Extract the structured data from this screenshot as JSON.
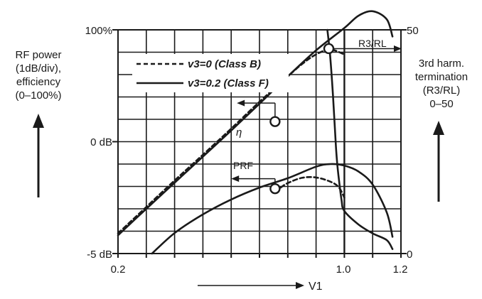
{
  "chart_data": {
    "type": "line",
    "title": "",
    "left_axis": {
      "caption_lines": [
        "RF power",
        "(1dB/div),",
        "efficiency",
        "(0–100%)"
      ],
      "tick_labels": [
        "100%",
        "0 dB",
        "-5 dB"
      ]
    },
    "right_axis": {
      "caption_lines": [
        "3rd harm.",
        "termination",
        "(R3/RL)",
        "0–50"
      ],
      "tick_labels": [
        "50",
        "0"
      ],
      "ylim": [
        0,
        50
      ]
    },
    "x_axis": {
      "label": "V1",
      "xlim": [
        0.2,
        1.2
      ],
      "tick_labels": [
        "0.2",
        "1.0",
        "1.2"
      ]
    },
    "legend": {
      "placement": "top-left",
      "entries": [
        {
          "label": "v3=0 (Class B)",
          "style": "dashed"
        },
        {
          "label": "v3=0.2 (Class F)",
          "style": "solid"
        }
      ]
    },
    "annotations": [
      {
        "text": "η",
        "target": "efficiency"
      },
      {
        "text": "PRF",
        "target": "rf-power"
      },
      {
        "text": "R3/RL",
        "target": "third-harmonic-termination"
      }
    ],
    "series": [
      {
        "name": "v3=0 (Class B)",
        "quantity": "efficiency",
        "axis": "left",
        "style": "dashed",
        "x": [
          0.2,
          0.3,
          0.4,
          0.5,
          0.6,
          0.7,
          0.8,
          0.85,
          0.9,
          0.95,
          1.0
        ],
        "y": [
          0.54,
          1.25,
          1.96,
          2.65,
          3.35,
          4.07,
          4.75,
          5.08,
          5.34,
          5.47,
          5.34
        ]
      },
      {
        "name": "v3=0.2 (Class F)",
        "quantity": "efficiency",
        "axis": "left",
        "style": "solid",
        "x": [
          0.2,
          0.3,
          0.4,
          0.5,
          0.6,
          0.7,
          0.8,
          0.9,
          1.0,
          1.05,
          1.1,
          1.15,
          1.17
        ],
        "y": [
          0.49,
          1.2,
          1.9,
          2.6,
          3.3,
          4.02,
          4.75,
          5.45,
          6.05,
          6.38,
          6.5,
          6.28,
          5.82
        ]
      },
      {
        "name": "v3=0 (Class B)",
        "quantity": "rf-power",
        "axis": "left",
        "style": "dashed",
        "x": [
          0.775,
          0.8,
          0.85,
          0.9,
          0.95,
          0.98,
          1.0
        ],
        "y": [
          1.77,
          1.89,
          2.03,
          2.04,
          1.93,
          1.78,
          1.5
        ]
      },
      {
        "name": "v3=0.2 (Class F)",
        "quantity": "rf-power",
        "axis": "left",
        "style": "solid",
        "x": [
          0.32,
          0.4,
          0.5,
          0.6,
          0.7,
          0.8,
          0.9,
          0.95,
          1.0,
          1.05,
          1.1,
          1.15,
          1.17
        ],
        "y": [
          0.0,
          0.55,
          1.05,
          1.45,
          1.77,
          2.02,
          2.33,
          2.4,
          2.36,
          2.2,
          1.85,
          1.1,
          0.45
        ]
      },
      {
        "name": "v3=0.2 (Class F)",
        "quantity": "third-harmonic-termination",
        "axis": "right",
        "style": "solid",
        "x": [
          0.94,
          0.95,
          0.96,
          0.97,
          0.975,
          0.98,
          0.99,
          1.0,
          1.05,
          1.1,
          1.15,
          1.17
        ],
        "y": [
          50,
          44,
          35,
          24,
          20,
          17,
          12,
          9.5,
          6.5,
          4.5,
          3,
          1
        ]
      }
    ]
  }
}
